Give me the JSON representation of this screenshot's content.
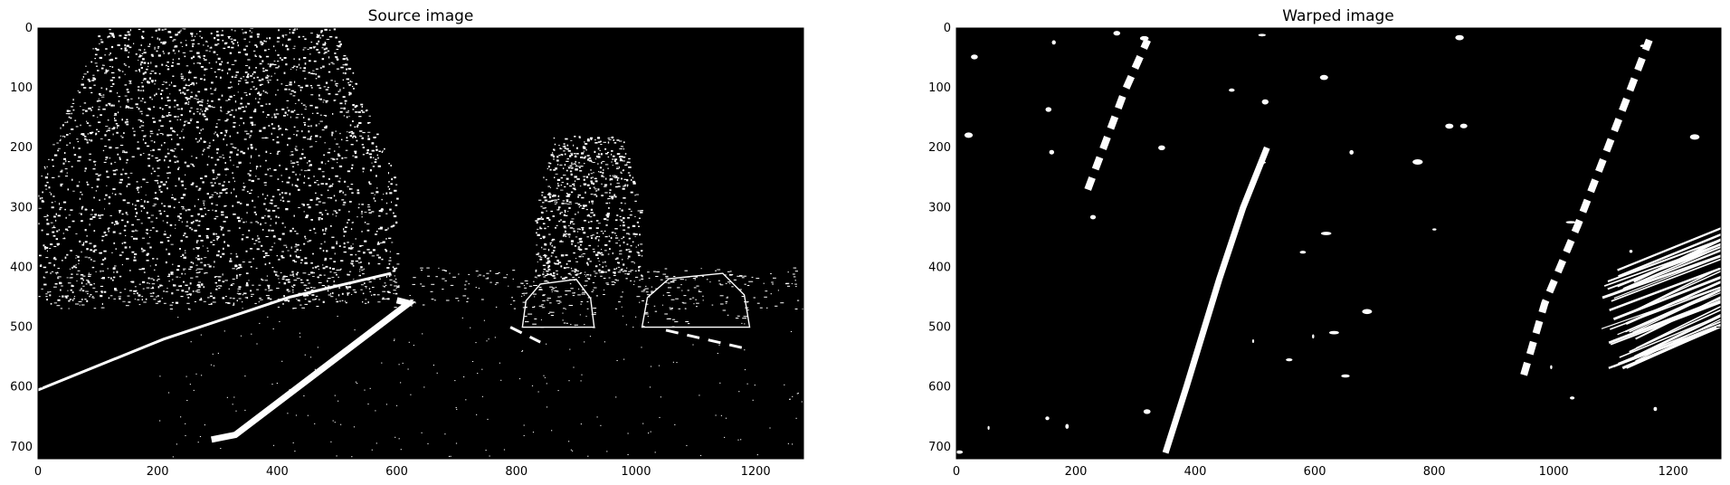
{
  "chart_data": [
    {
      "type": "image",
      "title": "Source image",
      "xlim": [
        0,
        1280
      ],
      "ylim": [
        720,
        0
      ],
      "xticks": [
        "0",
        "200",
        "400",
        "600",
        "800",
        "1000",
        "1200"
      ],
      "yticks": [
        "0",
        "100",
        "200",
        "300",
        "400",
        "500",
        "600",
        "700"
      ],
      "background": "#000000",
      "foreground": "#ffffff",
      "features": {
        "lane_lines": [
          {
            "name": "solid-lane-line",
            "points": [
              [
                290,
                688
              ],
              [
                330,
                680
              ],
              [
                620,
                460
              ],
              [
                600,
                455
              ]
            ]
          },
          {
            "name": "left-road-edge",
            "points": [
              [
                0,
                605
              ],
              [
                210,
                520
              ],
              [
                420,
                450
              ],
              [
                590,
                410
              ]
            ]
          },
          {
            "name": "dashed-lane-right-1",
            "points": [
              [
                790,
                500
              ],
              [
                840,
                525
              ]
            ]
          },
          {
            "name": "dashed-lane-right-2",
            "points": [
              [
                1050,
                505
              ],
              [
                1180,
                535
              ]
            ]
          }
        ],
        "cars": [
          {
            "name": "car-left",
            "x": [
              810,
              930
            ],
            "y": [
              420,
              500
            ]
          },
          {
            "name": "car-right",
            "x": [
              1010,
              1190
            ],
            "y": [
              410,
              500
            ]
          }
        ],
        "trees": [
          {
            "name": "tree-left",
            "x": [
              0,
              600
            ],
            "y": [
              0,
              460
            ]
          },
          {
            "name": "tree-right",
            "x": [
              830,
              1010
            ],
            "y": [
              180,
              420
            ]
          }
        ],
        "horizon_y": 460
      }
    },
    {
      "type": "image",
      "title": "Warped image",
      "xlim": [
        0,
        1280
      ],
      "ylim": [
        720,
        0
      ],
      "xticks": [
        "0",
        "200",
        "400",
        "600",
        "800",
        "1000",
        "1200"
      ],
      "yticks": [
        "0",
        "100",
        "200",
        "300",
        "400",
        "500",
        "600",
        "700"
      ],
      "background": "#000000",
      "foreground": "#ffffff",
      "features": {
        "lane_lines": [
          {
            "name": "center-lane-line",
            "points": [
              [
                350,
                710
              ],
              [
                385,
                600
              ],
              [
                440,
                420
              ],
              [
                480,
                300
              ],
              [
                520,
                200
              ]
            ]
          },
          {
            "name": "left-dashed-lane",
            "points": [
              [
                220,
                270
              ],
              [
                280,
                110
              ],
              [
                320,
                20
              ]
            ]
          },
          {
            "name": "right-dashed-lane",
            "points": [
              [
                950,
                580
              ],
              [
                985,
                460
              ],
              [
                1040,
                330
              ],
              [
                1110,
                150
              ],
              [
                1160,
                20
              ]
            ]
          }
        ],
        "right_streaks": {
          "x": [
            1080,
            1280
          ],
          "y": [
            360,
            530
          ]
        }
      }
    }
  ]
}
